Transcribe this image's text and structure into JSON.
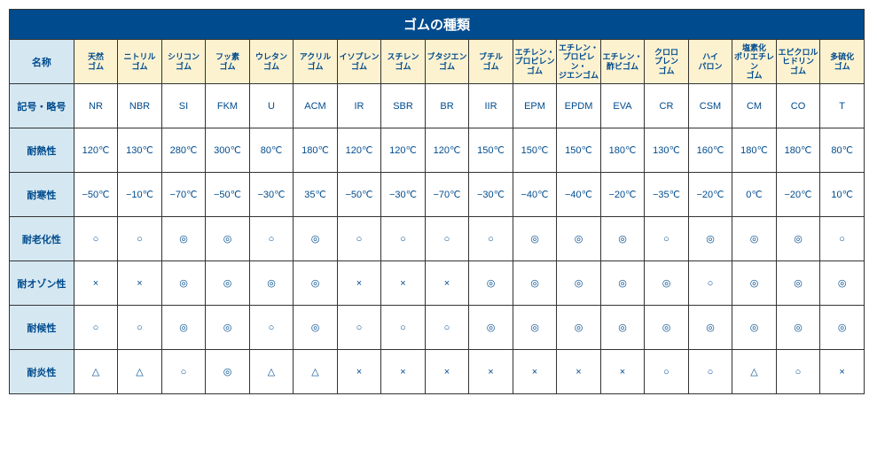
{
  "title": "ゴムの種類",
  "colors": {
    "title_bg": "#004b8d",
    "title_fg": "#ffffff",
    "header_bg": "#fdf2d0",
    "rowlabel_bg": "#d5e8f2",
    "text": "#004b8d",
    "border": "#333333"
  },
  "columns": [
    "名称",
    "天然\nゴム",
    "ニトリル\nゴム",
    "シリコン\nゴム",
    "フッ素\nゴム",
    "ウレタン\nゴム",
    "アクリル\nゴム",
    "イソプレン\nゴム",
    "スチレン\nゴム",
    "ブタジエン\nゴム",
    "ブチル\nゴム",
    "エチレン・\nプロピレン\nゴム",
    "エチレン・\nプロピレン・\nジエンゴム",
    "エチレン・\n酢ビゴム",
    "クロロ\nプレン\nゴム",
    "ハイ\nパロン",
    "塩素化\nポリエチレン\nゴム",
    "エピクロル\nヒドリン\nゴム",
    "多硫化\nゴム"
  ],
  "rows": [
    {
      "label": "記号・略号",
      "cells": [
        "NR",
        "NBR",
        "SI",
        "FKM",
        "U",
        "ACM",
        "IR",
        "SBR",
        "BR",
        "IIR",
        "EPM",
        "EPDM",
        "EVA",
        "CR",
        "CSM",
        "CM",
        "CO",
        "T"
      ]
    },
    {
      "label": "耐熱性",
      "cells": [
        "120℃",
        "130℃",
        "280℃",
        "300℃",
        "80℃",
        "180℃",
        "120℃",
        "120℃",
        "120℃",
        "150℃",
        "150℃",
        "150℃",
        "180℃",
        "130℃",
        "160℃",
        "180℃",
        "180℃",
        "80℃"
      ]
    },
    {
      "label": "耐寒性",
      "cells": [
        "−50℃",
        "−10℃",
        "−70℃",
        "−50℃",
        "−30℃",
        "35℃",
        "−50℃",
        "−30℃",
        "−70℃",
        "−30℃",
        "−40℃",
        "−40℃",
        "−20℃",
        "−35℃",
        "−20℃",
        "0℃",
        "−20℃",
        "10℃"
      ]
    },
    {
      "label": "耐老化性",
      "cells": [
        "○",
        "○",
        "◎",
        "◎",
        "○",
        "◎",
        "○",
        "○",
        "○",
        "○",
        "◎",
        "◎",
        "◎",
        "○",
        "◎",
        "◎",
        "◎",
        "○"
      ]
    },
    {
      "label": "耐オゾン性",
      "cells": [
        "×",
        "×",
        "◎",
        "◎",
        "◎",
        "◎",
        "×",
        "×",
        "×",
        "◎",
        "◎",
        "◎",
        "◎",
        "◎",
        "○",
        "◎",
        "◎",
        "◎"
      ]
    },
    {
      "label": "耐候性",
      "cells": [
        "○",
        "○",
        "◎",
        "◎",
        "○",
        "◎",
        "○",
        "○",
        "○",
        "◎",
        "◎",
        "◎",
        "◎",
        "◎",
        "◎",
        "◎",
        "◎",
        "◎"
      ]
    },
    {
      "label": "耐炎性",
      "cells": [
        "△",
        "△",
        "○",
        "◎",
        "△",
        "△",
        "×",
        "×",
        "×",
        "×",
        "×",
        "×",
        "×",
        "○",
        "○",
        "△",
        "○",
        "×"
      ]
    }
  ]
}
